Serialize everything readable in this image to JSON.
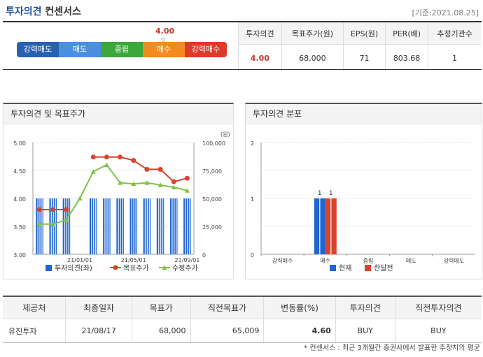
{
  "header": {
    "title": "투자의견",
    "subtitle": "컨센서스",
    "base_date": "[기준:2021.08.25]"
  },
  "scale": {
    "labels": [
      "강력매도",
      "매도",
      "중립",
      "매수",
      "강력매수"
    ],
    "marker_value": "4.00",
    "marker_arrow": "▽",
    "colors": [
      "#2861b0",
      "#4a8fe0",
      "#3aa83a",
      "#f58b1f",
      "#dd3a2a"
    ]
  },
  "consensus": {
    "headers": [
      "투자의견",
      "목표주가(원)",
      "EPS(원)",
      "PER(배)",
      "추정기관수"
    ],
    "values": [
      "4.00",
      "68,000",
      "71",
      "803.68",
      "1"
    ]
  },
  "panel_left": {
    "title": "투자의견 및 목표주가"
  },
  "panel_right": {
    "title": "투자의견 분포"
  },
  "chart_data": [
    {
      "type": "bar+line",
      "title": "투자의견 및 목표주가",
      "y_left": {
        "ticks": [
          "5.00",
          "4.50",
          "4.00",
          "3.50",
          "3.00"
        ],
        "range": [
          3.0,
          5.0
        ]
      },
      "y_right": {
        "ticks": [
          "100,000",
          "75,000",
          "50,000",
          "25,000",
          "0"
        ],
        "range": [
          0,
          100000
        ],
        "unit": "(원)"
      },
      "x_tick_labels": [
        "21/01/01",
        "21/05/01",
        "21/09/01"
      ],
      "series": [
        {
          "name": "투자의견(좌)",
          "type": "bar",
          "color": "#1f66d0",
          "values": [
            4,
            4,
            4,
            null,
            4,
            4,
            4,
            4,
            4,
            4,
            4,
            4
          ]
        },
        {
          "name": "목표주가",
          "type": "line",
          "color": "#d9432b",
          "values": [
            40000,
            40000,
            40000,
            null,
            87000,
            87000,
            87000,
            84000,
            76000,
            76000,
            65000,
            68000
          ]
        },
        {
          "name": "수정주가",
          "type": "line",
          "color": "#7fc243",
          "values": [
            27000,
            27000,
            31000,
            50000,
            74000,
            80000,
            64000,
            63000,
            64000,
            62000,
            60000,
            57000
          ]
        }
      ]
    },
    {
      "type": "bar",
      "title": "투자의견 분포",
      "categories": [
        "강력매수",
        "매수",
        "중립",
        "매도",
        "강력매도"
      ],
      "y_ticks": [
        "2",
        "1",
        "0"
      ],
      "ylim": [
        0,
        2
      ],
      "series": [
        {
          "name": "현재",
          "color": "#1f66d0",
          "values": [
            0,
            1,
            0,
            0,
            0
          ]
        },
        {
          "name": "한달전",
          "color": "#d9432b",
          "values": [
            0,
            1,
            0,
            0,
            0
          ]
        }
      ],
      "data_labels": [
        "1",
        "1"
      ]
    }
  ],
  "detail": {
    "headers": [
      "제공처",
      "최종일자",
      "목표가",
      "직전목표가",
      "변동률(%)",
      "투자의견",
      "직전투자의견"
    ],
    "row": [
      "유진투자",
      "21/08/17",
      "68,000",
      "65,009",
      "4.60",
      "BUY",
      "BUY"
    ]
  },
  "footnote": "* 컨센서스 : 최근 3개월간 증권사에서 발표한 추정치의 평균"
}
